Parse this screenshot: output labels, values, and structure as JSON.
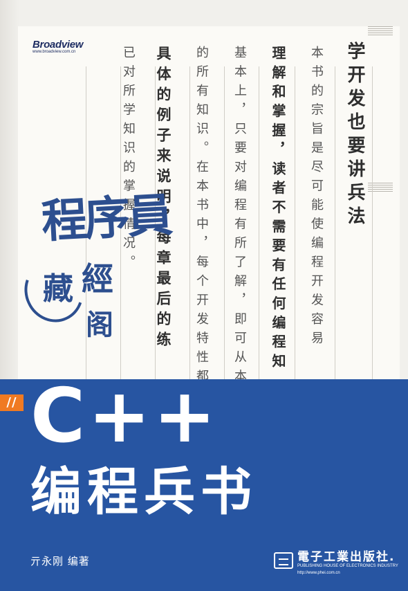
{
  "publisher_brand": {
    "name": "Broadview",
    "url": "www.broadview.com.cn"
  },
  "poem_columns": [
    "学开发也要讲兵法",
    "本书的宗旨是尽可能使编程开发容易",
    "理解和掌握，读者不需要有任何编程知",
    "基本上，只要对编程有所了解，即可从本书",
    "的所有知识。在本书中，每个开发特性都用",
    "具体的例子来说明，每章最后的练",
    "已对所学知识的掌握情况。"
  ],
  "series": {
    "line1": "程序員",
    "line2a": "藏",
    "line2b": "經",
    "line2c": "阁"
  },
  "badge": "//",
  "title": {
    "main": "C++",
    "sub": "编程兵书"
  },
  "author": "亓永刚  编著",
  "publisher": {
    "name": "電子工業出版社.",
    "name_en": "PUBLISHING HOUSE OF ELECTRONICS INDUSTRY",
    "url": "http://www.phei.com.cn"
  },
  "colors": {
    "band": "#2755a2",
    "accent": "#f07a22",
    "calligraphy": "#2d4f8f"
  }
}
